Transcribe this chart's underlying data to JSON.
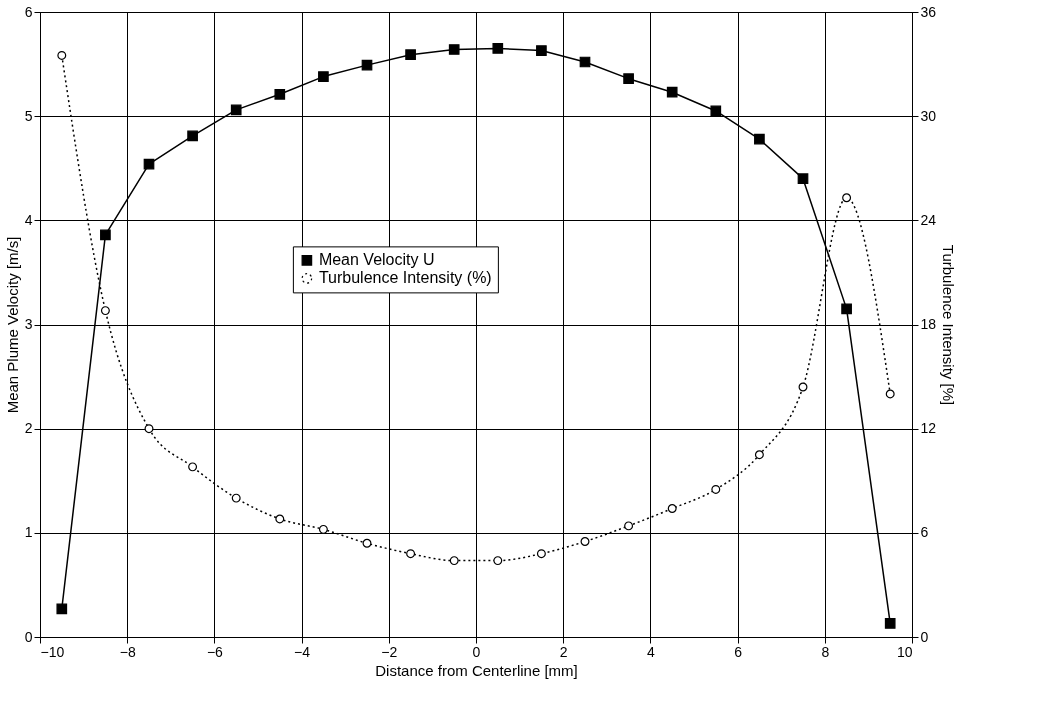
{
  "chart_data": {
    "type": "line",
    "xlabel": "Distance from Centerline [mm]",
    "ylabel": "Mean Plume Velocity [m/s]",
    "y2label": "Turbulence Intensity [%]",
    "x": [
      -9.5,
      -8.5,
      -7.5,
      -6.5,
      -5.5,
      -4.5,
      -3.5,
      -2.5,
      -1.5,
      -0.5,
      0.5,
      1.5,
      2.5,
      3.5,
      4.5,
      5.5,
      6.5,
      7.5,
      8.5,
      9.5
    ],
    "series": [
      {
        "name": "Mean Velocity U",
        "color": "#000000",
        "marker": "square",
        "line_style": "solid",
        "values": [
          0.27,
          3.86,
          4.54,
          4.81,
          5.06,
          5.21,
          5.38,
          5.49,
          5.59,
          5.64,
          5.65,
          5.63,
          5.52,
          5.36,
          5.23,
          5.05,
          4.78,
          4.4,
          3.15,
          0.13
        ]
      },
      {
        "name": "Turbulence Intensity (%)",
        "color": "#000000",
        "marker": "circle",
        "line_style": "dotted",
        "axis": "y2",
        "values": [
          33.5,
          18.8,
          12.0,
          9.8,
          8.0,
          6.8,
          6.2,
          5.4,
          4.8,
          4.4,
          4.4,
          4.8,
          5.5,
          6.4,
          7.4,
          8.5,
          10.5,
          14.4,
          25.3,
          14.0
        ]
      }
    ],
    "xlim": [
      -10,
      10
    ],
    "xticks": [
      -10,
      -8,
      -6,
      -4,
      -2,
      0,
      2,
      4,
      6,
      8,
      10
    ],
    "ylim": [
      0,
      6
    ],
    "yticks": [
      0,
      1,
      2,
      3,
      4,
      5,
      6
    ],
    "y2lim": [
      0,
      36
    ],
    "y2ticks": [
      0,
      6,
      12,
      18,
      24,
      30,
      36
    ],
    "grid": true,
    "legend": "center"
  }
}
